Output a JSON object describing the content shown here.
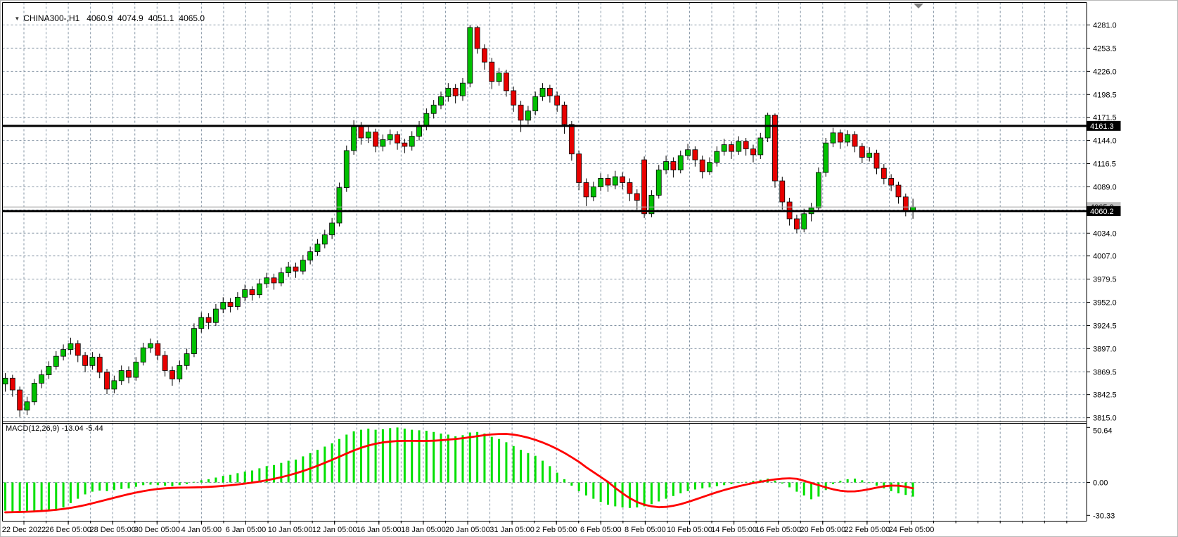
{
  "title": {
    "collapse_icon": "▼",
    "symbol": "CHINA300-,H1",
    "open": "4060.9",
    "high": "4074.9",
    "low": "4051.1",
    "close": "4065.0"
  },
  "chart_data": {
    "type": "candlestick_with_macd",
    "title": "CHINA300-,H1  4060.9 4074.9 4051.1 4065.0",
    "timeframe": "H1",
    "grid": "dashed",
    "legend_position": "none",
    "colors": {
      "bull": "#00C000",
      "bear": "#E80000",
      "wick": "#000000",
      "macd_hist": "#00E000",
      "macd_signal": "#FF0000",
      "grid": "#8494A4",
      "hline": "#000000",
      "current_line": "#A8A8A8",
      "current_badge": "#C0C0C0",
      "badge": "#000000",
      "badge_text": "#FFFFFF"
    },
    "price_axis": {
      "min": 3815.0,
      "max": 4281.0,
      "ticks": [
        {
          "v": 4281.0,
          "label": "4281.0"
        },
        {
          "v": 4253.5,
          "label": "4253.5"
        },
        {
          "v": 4226.0,
          "label": "4226.0"
        },
        {
          "v": 4198.5,
          "label": "4198.5"
        },
        {
          "v": 4171.5,
          "label": "4171.5"
        },
        {
          "v": 4144.0,
          "label": "4144.0"
        },
        {
          "v": 4116.5,
          "label": "4116.5"
        },
        {
          "v": 4089.0,
          "label": "4089.0"
        },
        {
          "v": 4061.5,
          "label": ""
        },
        {
          "v": 4034.0,
          "label": "4034.0"
        },
        {
          "v": 4007.0,
          "label": "4007.0"
        },
        {
          "v": 3979.5,
          "label": "3979.5"
        },
        {
          "v": 3952.0,
          "label": "3952.0"
        },
        {
          "v": 3924.5,
          "label": "3924.5"
        },
        {
          "v": 3897.0,
          "label": "3897.0"
        },
        {
          "v": 3869.5,
          "label": "3869.5"
        },
        {
          "v": 3842.5,
          "label": "3842.5"
        },
        {
          "v": 3815.0,
          "label": "3815.0"
        }
      ]
    },
    "hlines": [
      {
        "price": 4161.3,
        "label": "4161.3"
      },
      {
        "price": 4060.2,
        "label": "4060.2"
      }
    ],
    "current_price": {
      "price": 4065.0,
      "label": "4065.0"
    },
    "time_axis": {
      "labels": [
        "22 Dec 2022",
        "26 Dec 05:00",
        "28 Dec 05:00",
        "30 Dec 05:00",
        "4 Jan 05:00",
        "6 Jan 05:00",
        "10 Jan 05:00",
        "12 Jan 05:00",
        "16 Jan 05:00",
        "18 Jan 05:00",
        "20 Jan 05:00",
        "31 Jan 05:00",
        "2 Feb 05:00",
        "6 Feb 05:00",
        "8 Feb 05:00",
        "10 Feb 05:00",
        "14 Feb 05:00",
        "16 Feb 05:00",
        "20 Feb 05:00",
        "22 Feb 05:00",
        "24 Feb 05:00"
      ]
    },
    "candles": [
      [
        3855,
        3868,
        3846,
        3862
      ],
      [
        3862,
        3866,
        3840,
        3848
      ],
      [
        3848,
        3852,
        3816,
        3824
      ],
      [
        3824,
        3840,
        3818,
        3834
      ],
      [
        3834,
        3861,
        3830,
        3856
      ],
      [
        3856,
        3872,
        3850,
        3866
      ],
      [
        3866,
        3882,
        3861,
        3876
      ],
      [
        3876,
        3894,
        3872,
        3888
      ],
      [
        3888,
        3902,
        3883,
        3896
      ],
      [
        3896,
        3910,
        3890,
        3903
      ],
      [
        3903,
        3907,
        3881,
        3889
      ],
      [
        3889,
        3893,
        3869,
        3877
      ],
      [
        3877,
        3893,
        3872,
        3887
      ],
      [
        3887,
        3891,
        3862,
        3869
      ],
      [
        3869,
        3873,
        3843,
        3849
      ],
      [
        3849,
        3865,
        3844,
        3859
      ],
      [
        3859,
        3877,
        3854,
        3871
      ],
      [
        3871,
        3876,
        3856,
        3863
      ],
      [
        3863,
        3887,
        3859,
        3881
      ],
      [
        3881,
        3904,
        3877,
        3898
      ],
      [
        3898,
        3909,
        3892,
        3903
      ],
      [
        3903,
        3907,
        3883,
        3889
      ],
      [
        3889,
        3894,
        3864,
        3871
      ],
      [
        3871,
        3876,
        3853,
        3861
      ],
      [
        3861,
        3883,
        3857,
        3877
      ],
      [
        3877,
        3897,
        3872,
        3891
      ],
      [
        3891,
        3927,
        3887,
        3921
      ],
      [
        3921,
        3940,
        3916,
        3934
      ],
      [
        3934,
        3939,
        3920,
        3928
      ],
      [
        3928,
        3950,
        3924,
        3944
      ],
      [
        3944,
        3958,
        3939,
        3952
      ],
      [
        3952,
        3957,
        3940,
        3947
      ],
      [
        3947,
        3964,
        3943,
        3958
      ],
      [
        3958,
        3973,
        3953,
        3967
      ],
      [
        3967,
        3971,
        3954,
        3961
      ],
      [
        3961,
        3980,
        3957,
        3974
      ],
      [
        3974,
        3987,
        3969,
        3981
      ],
      [
        3981,
        3986,
        3967,
        3975
      ],
      [
        3975,
        3993,
        3971,
        3987
      ],
      [
        3987,
        4000,
        3982,
        3994
      ],
      [
        3994,
        3999,
        3981,
        3989
      ],
      [
        3989,
        4008,
        3985,
        4002
      ],
      [
        4002,
        4018,
        3997,
        4012
      ],
      [
        4012,
        4027,
        4007,
        4021
      ],
      [
        4021,
        4038,
        4016,
        4032
      ],
      [
        4032,
        4052,
        4027,
        4046
      ],
      [
        4046,
        4094,
        4042,
        4088
      ],
      [
        4088,
        4138,
        4083,
        4132
      ],
      [
        4132,
        4168,
        4127,
        4161
      ],
      [
        4161,
        4166,
        4139,
        4147
      ],
      [
        4147,
        4160,
        4141,
        4154
      ],
      [
        4154,
        4158,
        4130,
        4137
      ],
      [
        4137,
        4151,
        4131,
        4145
      ],
      [
        4145,
        4157,
        4139,
        4151
      ],
      [
        4151,
        4155,
        4133,
        4141
      ],
      [
        4141,
        4146,
        4129,
        4137
      ],
      [
        4137,
        4155,
        4132,
        4149
      ],
      [
        4149,
        4167,
        4144,
        4161
      ],
      [
        4161,
        4182,
        4156,
        4176
      ],
      [
        4176,
        4192,
        4170,
        4186
      ],
      [
        4186,
        4202,
        4181,
        4196
      ],
      [
        4196,
        4212,
        4190,
        4206
      ],
      [
        4206,
        4211,
        4188,
        4197
      ],
      [
        4197,
        4218,
        4191,
        4212
      ],
      [
        4212,
        4281,
        4207,
        4278
      ],
      [
        4278,
        4280,
        4247,
        4253
      ],
      [
        4253,
        4258,
        4228,
        4237
      ],
      [
        4237,
        4242,
        4205,
        4214
      ],
      [
        4214,
        4230,
        4209,
        4224
      ],
      [
        4224,
        4228,
        4196,
        4203
      ],
      [
        4203,
        4208,
        4178,
        4186
      ],
      [
        4186,
        4191,
        4154,
        4168
      ],
      [
        4168,
        4185,
        4163,
        4179
      ],
      [
        4179,
        4202,
        4174,
        4196
      ],
      [
        4196,
        4212,
        4191,
        4206
      ],
      [
        4206,
        4210,
        4189,
        4197
      ],
      [
        4197,
        4202,
        4178,
        4186
      ],
      [
        4186,
        4190,
        4152,
        4163
      ],
      [
        4163,
        4167,
        4120,
        4128
      ],
      [
        4128,
        4132,
        4085,
        4094
      ],
      [
        4094,
        4099,
        4066,
        4077
      ],
      [
        4077,
        4095,
        4072,
        4089
      ],
      [
        4089,
        4105,
        4084,
        4099
      ],
      [
        4099,
        4104,
        4083,
        4091
      ],
      [
        4091,
        4108,
        4086,
        4101
      ],
      [
        4101,
        4106,
        4086,
        4094
      ],
      [
        4094,
        4099,
        4072,
        4081
      ],
      [
        4081,
        4086,
        4062,
        4073
      ],
      [
        4121,
        4125,
        4052,
        4057
      ],
      [
        4057,
        4085,
        4053,
        4079
      ],
      [
        4079,
        4115,
        4075,
        4109
      ],
      [
        4109,
        4126,
        4104,
        4119
      ],
      [
        4119,
        4124,
        4100,
        4109
      ],
      [
        4109,
        4132,
        4105,
        4126
      ],
      [
        4126,
        4140,
        4121,
        4133
      ],
      [
        4133,
        4137,
        4113,
        4121
      ],
      [
        4121,
        4126,
        4099,
        4107
      ],
      [
        4107,
        4124,
        4103,
        4118
      ],
      [
        4118,
        4137,
        4113,
        4131
      ],
      [
        4131,
        4146,
        4126,
        4139
      ],
      [
        4139,
        4143,
        4122,
        4131
      ],
      [
        4131,
        4149,
        4127,
        4143
      ],
      [
        4143,
        4147,
        4126,
        4134
      ],
      [
        4134,
        4139,
        4118,
        4127
      ],
      [
        4127,
        4153,
        4122,
        4147
      ],
      [
        4147,
        4177,
        4142,
        4174
      ],
      [
        4174,
        4176,
        4088,
        4096
      ],
      [
        4096,
        4101,
        4062,
        4071
      ],
      [
        4071,
        4076,
        4043,
        4051
      ],
      [
        4051,
        4056,
        4034,
        4039
      ],
      [
        4039,
        4063,
        4035,
        4057
      ],
      [
        4057,
        4070,
        4048,
        4064
      ],
      [
        4064,
        4112,
        4060,
        4106
      ],
      [
        4106,
        4147,
        4101,
        4141
      ],
      [
        4141,
        4159,
        4136,
        4153
      ],
      [
        4153,
        4157,
        4134,
        4142
      ],
      [
        4142,
        4156,
        4137,
        4151
      ],
      [
        4151,
        4155,
        4130,
        4137
      ],
      [
        4137,
        4141,
        4117,
        4124
      ],
      [
        4124,
        4136,
        4119,
        4129
      ],
      [
        4129,
        4133,
        4104,
        4111
      ],
      [
        4111,
        4116,
        4092,
        4099
      ],
      [
        4099,
        4104,
        4084,
        4091
      ],
      [
        4091,
        4095,
        4069,
        4077
      ],
      [
        4077,
        4081,
        4054,
        4061
      ],
      [
        4060.9,
        4074.9,
        4051.1,
        4065.0
      ]
    ],
    "macd": {
      "label": "MACD(12,26,9) -13.04 -5.44",
      "macd_value": -13.04,
      "signal_value": -5.44,
      "axis_ticks": [
        {
          "v": 50.64,
          "label": "50.64"
        },
        {
          "v": 0.0,
          "label": "0.00"
        },
        {
          "v": -30.33,
          "label": "-30.33"
        }
      ],
      "histogram": [
        -26,
        -27,
        -27.5,
        -27,
        -26.5,
        -26,
        -26.5,
        -26,
        -23,
        -19,
        -15,
        -11,
        -8.5,
        -7.5,
        -8,
        -7,
        -6,
        -5.5,
        -4,
        -2.5,
        -2,
        -2.5,
        -3,
        -3.5,
        -2.5,
        -1.5,
        0.5,
        2,
        3,
        4.5,
        6,
        7,
        8.5,
        10,
        11,
        13,
        15,
        16,
        18,
        20,
        21,
        24,
        27,
        30,
        33,
        36,
        40,
        44,
        47,
        48.5,
        49.5,
        48.5,
        49,
        50,
        50.6,
        49.5,
        48.5,
        48,
        47.5,
        46.5,
        45,
        44,
        42.5,
        43.5,
        46,
        46.5,
        45,
        42,
        40,
        37,
        33.5,
        30,
        27,
        24.5,
        20,
        15,
        9,
        3,
        -3,
        -8,
        -12,
        -15,
        -18,
        -20.5,
        -22,
        -23,
        -23.5,
        -23,
        -22,
        -20,
        -17.5,
        -15,
        -12.5,
        -10,
        -8,
        -6.5,
        -5.5,
        -4.5,
        -3.5,
        -2.5,
        -1.5,
        -0.5,
        0.5,
        1.5,
        2.5,
        3.5,
        1.5,
        -1,
        -4.5,
        -8.5,
        -12,
        -15.5,
        -13,
        -7,
        -1.5,
        1.5,
        3,
        3.5,
        2,
        -0.5,
        -3,
        -5.5,
        -8,
        -10,
        -11.5,
        -13.04
      ],
      "signal_line": [
        -27.5,
        -27.4,
        -27.2,
        -27,
        -26.7,
        -26.3,
        -25.8,
        -25.2,
        -24.4,
        -23.4,
        -22.2,
        -20.8,
        -19.2,
        -17.5,
        -15.8,
        -14.1,
        -12.4,
        -10.8,
        -9.3,
        -8,
        -6.9,
        -6,
        -5.4,
        -5,
        -4.8,
        -4.7,
        -4.6,
        -4.4,
        -4.1,
        -3.7,
        -3.2,
        -2.6,
        -1.9,
        -1.1,
        -0.2,
        0.8,
        2,
        3.3,
        4.8,
        6.5,
        8.4,
        10.5,
        12.8,
        15.3,
        18,
        20.8,
        23.7,
        26.6,
        29.4,
        31.9,
        34,
        35.6,
        36.8,
        37.6,
        38.1,
        38.3,
        38.3,
        38.2,
        38.2,
        38.4,
        38.8,
        39.4,
        40,
        40.7,
        41.6,
        42.6,
        43.5,
        44.2,
        44.6,
        44.7,
        44,
        42.8,
        41.2,
        39.2,
        36.8,
        34,
        30.8,
        27.2,
        23.2,
        19,
        14,
        9.5,
        5,
        0.5,
        -5,
        -10,
        -14.5,
        -18,
        -20.5,
        -22,
        -22.8,
        -22.5,
        -21.5,
        -20,
        -18,
        -15.8,
        -13.5,
        -11.2,
        -9,
        -7,
        -5.2,
        -3.5,
        -2,
        -0.6,
        0.6,
        1.8,
        2.8,
        3.5,
        3.8,
        3.4,
        1.5,
        -0.5,
        -2.5,
        -4.5,
        -6.3,
        -7.6,
        -8.3,
        -8.2,
        -7.4,
        -6.2,
        -4.8,
        -3.6,
        -2.9,
        -3,
        -3.9,
        -5.44
      ]
    }
  }
}
